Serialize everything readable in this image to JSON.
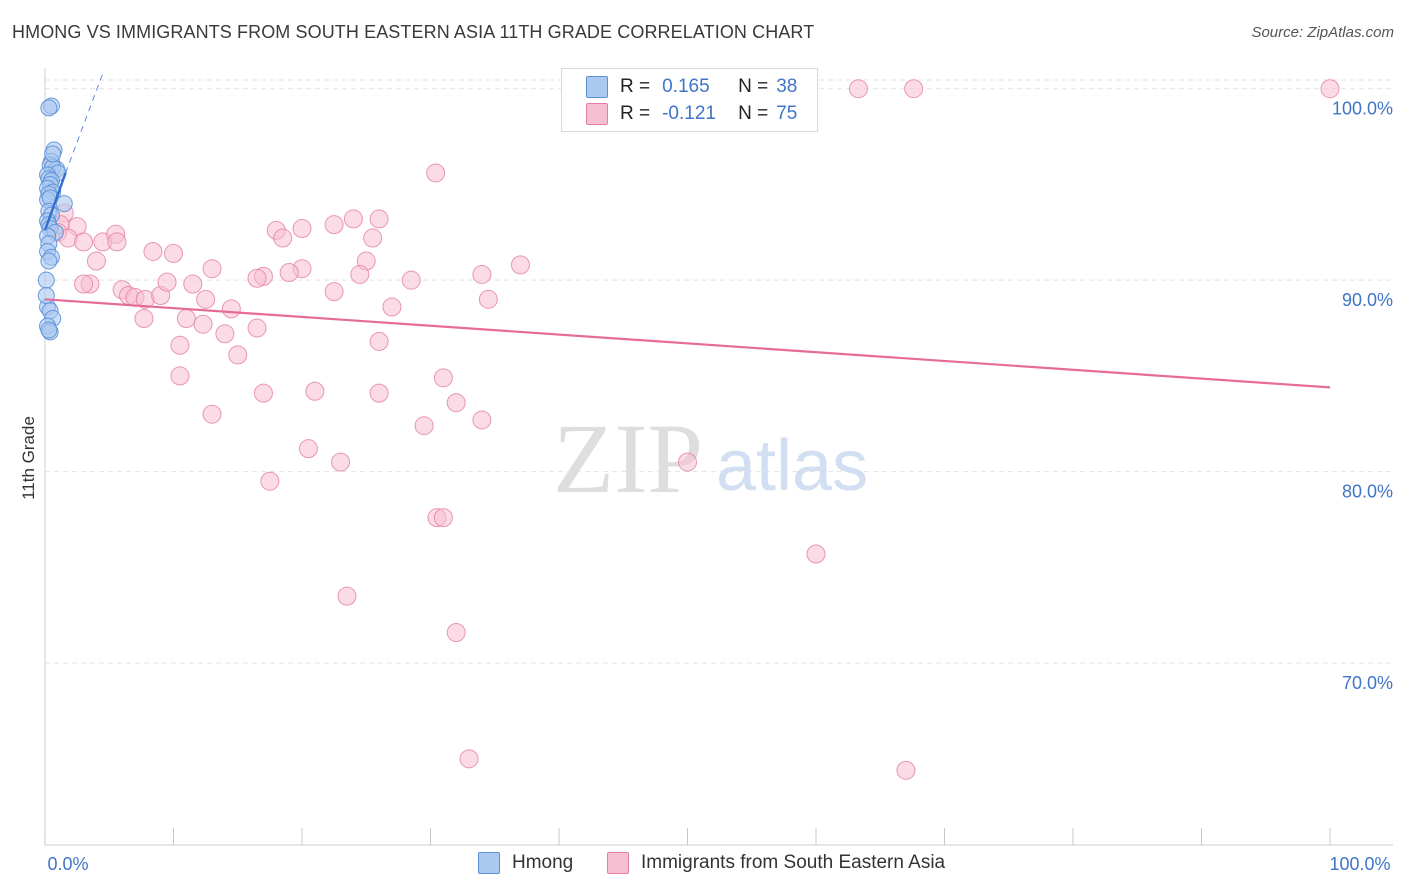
{
  "title": "HMONG VS IMMIGRANTS FROM SOUTH EASTERN ASIA 11TH GRADE CORRELATION CHART",
  "source": "Source: ZipAtlas.com",
  "watermark": {
    "zip": "ZIP",
    "atlas": "atlas"
  },
  "colors": {
    "hmong_fill": "#aac8f0",
    "hmong_stroke": "#5b8fd6",
    "hmong_line": "#2f6fd0",
    "sea_fill": "#f7c0d2",
    "sea_stroke": "#e27fa2",
    "sea_line": "#e66b98",
    "tick_label": "#3f74c9",
    "grid": "#e3e3e3"
  },
  "legend": {
    "rows": [
      {
        "r_label": "R =",
        "r_value": "0.165",
        "n_label": "N =",
        "n_value": "38"
      },
      {
        "r_label": "R =",
        "r_value": "-0.121",
        "n_label": "N =",
        "n_value": "75"
      }
    ]
  },
  "bottom_legend": {
    "series1": "Hmong",
    "series2": "Immigrants from South Eastern Asia"
  },
  "chart_data": {
    "type": "scatter",
    "title": "HMONG VS IMMIGRANTS FROM SOUTH EASTERN ASIA 11TH GRADE CORRELATION CHART",
    "xlabel": "",
    "ylabel": "11th Grade",
    "xlim": [
      0,
      100
    ],
    "ylim": [
      60.5,
      101.5
    ],
    "x_tick_labels": [
      {
        "value": 0,
        "label": "0.0%"
      },
      {
        "value": 100,
        "label": "100.0%"
      }
    ],
    "y_tick_labels": [
      {
        "value": 100,
        "label": "100.0%"
      },
      {
        "value": 90,
        "label": "90.0%"
      },
      {
        "value": 80,
        "label": "80.0%"
      },
      {
        "value": 70,
        "label": "70.0%"
      }
    ],
    "series": [
      {
        "name": "Hmong",
        "trend": {
          "x": [
            0,
            1.6
          ],
          "y": [
            92.6,
            95.6
          ],
          "extended": {
            "x": [
              1.6,
              4.5
            ],
            "y": [
              95.6,
              100.8
            ]
          }
        },
        "points": [
          [
            0.5,
            99.1
          ],
          [
            0.3,
            99.0
          ],
          [
            0.7,
            96.8
          ],
          [
            0.5,
            96.2
          ],
          [
            0.4,
            96.0
          ],
          [
            0.9,
            95.8
          ],
          [
            0.6,
            95.9
          ],
          [
            1.0,
            95.6
          ],
          [
            0.2,
            95.5
          ],
          [
            0.3,
            95.3
          ],
          [
            0.5,
            95.2
          ],
          [
            0.4,
            95.0
          ],
          [
            0.2,
            94.8
          ],
          [
            0.6,
            94.6
          ],
          [
            0.3,
            94.5
          ],
          [
            0.2,
            94.2
          ],
          [
            0.4,
            94.3
          ],
          [
            1.5,
            94.0
          ],
          [
            0.3,
            93.6
          ],
          [
            0.5,
            93.4
          ],
          [
            0.2,
            93.1
          ],
          [
            0.3,
            92.9
          ],
          [
            0.4,
            92.7
          ],
          [
            0.8,
            92.5
          ],
          [
            0.2,
            92.3
          ],
          [
            0.3,
            91.9
          ],
          [
            0.2,
            91.5
          ],
          [
            0.5,
            91.2
          ],
          [
            0.3,
            91.0
          ],
          [
            0.2,
            88.6
          ],
          [
            0.4,
            88.4
          ],
          [
            0.6,
            88.0
          ],
          [
            0.2,
            87.6
          ],
          [
            0.4,
            87.3
          ],
          [
            0.3,
            87.4
          ],
          [
            0.1,
            90.0
          ],
          [
            0.1,
            89.2
          ],
          [
            0.6,
            96.6
          ]
        ]
      },
      {
        "name": "Immigrants from South Eastern Asia",
        "trend": {
          "x": [
            0,
            100
          ],
          "y": [
            89.0,
            84.4
          ]
        },
        "points": [
          [
            63.3,
            100.0
          ],
          [
            67.6,
            100.0
          ],
          [
            100.0,
            100.0
          ],
          [
            30.4,
            95.6
          ],
          [
            1.5,
            93.5
          ],
          [
            1.2,
            92.9
          ],
          [
            2.5,
            92.8
          ],
          [
            1.0,
            92.5
          ],
          [
            1.8,
            92.2
          ],
          [
            3.0,
            92.0
          ],
          [
            4.5,
            92.0
          ],
          [
            5.5,
            92.4
          ],
          [
            5.6,
            92.0
          ],
          [
            8.4,
            91.5
          ],
          [
            10.0,
            91.4
          ],
          [
            4.0,
            91.0
          ],
          [
            3.5,
            89.8
          ],
          [
            6.0,
            89.5
          ],
          [
            6.5,
            89.2
          ],
          [
            7.0,
            89.1
          ],
          [
            7.8,
            89.0
          ],
          [
            9.0,
            89.2
          ],
          [
            9.5,
            89.9
          ],
          [
            11.5,
            89.8
          ],
          [
            13.0,
            90.6
          ],
          [
            12.5,
            89.0
          ],
          [
            14.5,
            88.5
          ],
          [
            11.0,
            88.0
          ],
          [
            7.7,
            88.0
          ],
          [
            12.3,
            87.7
          ],
          [
            14.0,
            87.2
          ],
          [
            16.5,
            87.5
          ],
          [
            15.0,
            86.1
          ],
          [
            10.5,
            86.6
          ],
          [
            18.0,
            92.6
          ],
          [
            18.5,
            92.2
          ],
          [
            20.0,
            92.7
          ],
          [
            22.5,
            92.9
          ],
          [
            24.0,
            93.2
          ],
          [
            26.0,
            93.2
          ],
          [
            25.5,
            92.2
          ],
          [
            25.0,
            91.0
          ],
          [
            24.5,
            90.3
          ],
          [
            20.0,
            90.6
          ],
          [
            19.0,
            90.4
          ],
          [
            17.0,
            90.2
          ],
          [
            16.5,
            90.1
          ],
          [
            22.5,
            89.4
          ],
          [
            28.5,
            90.0
          ],
          [
            27.0,
            88.6
          ],
          [
            34.0,
            90.3
          ],
          [
            34.5,
            89.0
          ],
          [
            37.0,
            90.8
          ],
          [
            26.0,
            86.8
          ],
          [
            31.0,
            84.9
          ],
          [
            32.0,
            83.6
          ],
          [
            34.0,
            82.7
          ],
          [
            29.5,
            82.4
          ],
          [
            26.0,
            84.1
          ],
          [
            21.0,
            84.2
          ],
          [
            17.0,
            84.1
          ],
          [
            13.0,
            83.0
          ],
          [
            10.5,
            85.0
          ],
          [
            20.5,
            81.2
          ],
          [
            23.0,
            80.5
          ],
          [
            17.5,
            79.5
          ],
          [
            30.5,
            77.6
          ],
          [
            31.0,
            77.6
          ],
          [
            50.0,
            80.5
          ],
          [
            60.0,
            75.7
          ],
          [
            23.5,
            73.5
          ],
          [
            32.0,
            71.6
          ],
          [
            33.0,
            65.0
          ],
          [
            67.0,
            64.4
          ],
          [
            3.0,
            89.8
          ]
        ]
      }
    ]
  }
}
